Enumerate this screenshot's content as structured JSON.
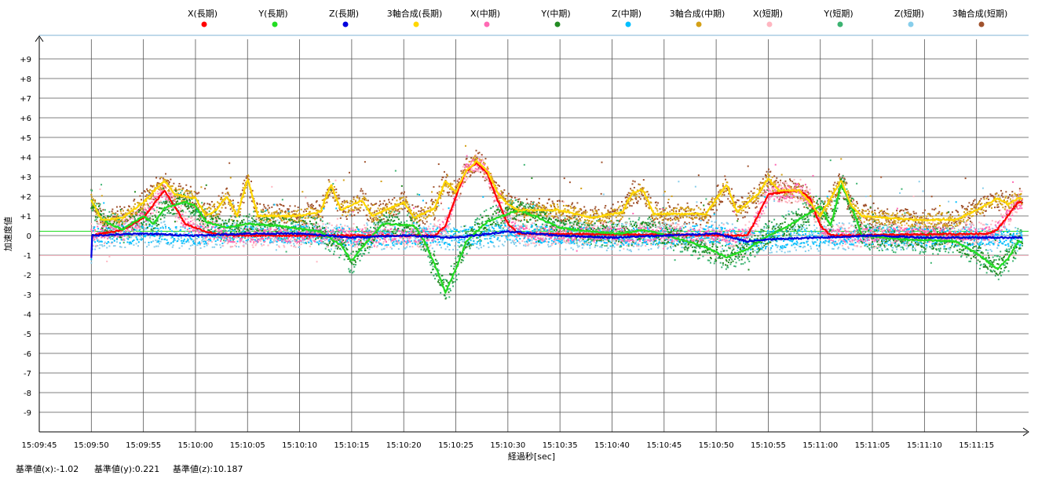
{
  "chart_data": {
    "type": "scatter",
    "xlabel": "経過秒[sec]",
    "ylabel": "加速度値",
    "xlim": [
      "15:09:45",
      "15:11:20"
    ],
    "ylim": [
      -10,
      10
    ],
    "grid": true,
    "legend_position": "top",
    "x_tick_labels": [
      "15:09:45",
      "15:09:50",
      "15:09:55",
      "15:10:00",
      "15:10:05",
      "15:10:10",
      "15:10:15",
      "15:10:20",
      "15:10:25",
      "15:10:30",
      "15:10:35",
      "15:10:40",
      "15:10:45",
      "15:10:50",
      "15:10:55",
      "15:11:00",
      "15:11:05",
      "15:11:10",
      "15:11:15"
    ],
    "y_tick_labels": [
      "+9",
      "+8",
      "+7",
      "+6",
      "+5",
      "+4",
      "+3",
      "+2",
      "+1",
      "0",
      "-1",
      "-2",
      "-3",
      "-4",
      "-5",
      "-6",
      "-7",
      "-8",
      "-9"
    ],
    "reference_lines": [
      {
        "axis": "x",
        "value": -1.02,
        "color": "#f4b6c2"
      },
      {
        "axis": "y",
        "value": 0.221,
        "color": "#22dd22"
      }
    ],
    "series": [
      {
        "name": "X(長期)",
        "color": "#ff0000",
        "kind": "line",
        "points": [
          [
            "15:09:50",
            0
          ],
          [
            "15:09:53",
            0.3
          ],
          [
            "15:09:55",
            0.9
          ],
          [
            "15:09:57",
            2.3
          ],
          [
            "15:09:58",
            1.5
          ],
          [
            "15:09:59",
            0.6
          ],
          [
            "15:10:01",
            0.2
          ],
          [
            "15:10:03",
            0
          ],
          [
            "15:10:23",
            0
          ],
          [
            "15:10:24",
            0.5
          ],
          [
            "15:10:25",
            2.0
          ],
          [
            "15:10:26",
            3.3
          ],
          [
            "15:10:27",
            3.7
          ],
          [
            "15:10:28",
            3.2
          ],
          [
            "15:10:29",
            1.8
          ],
          [
            "15:10:30",
            0.6
          ],
          [
            "15:10:31",
            0.1
          ],
          [
            "15:10:53",
            0
          ],
          [
            "15:10:54",
            1.0
          ],
          [
            "15:10:55",
            2.1
          ],
          [
            "15:10:58",
            2.3
          ],
          [
            "15:10:59",
            1.9
          ],
          [
            "15:11:00",
            0.5
          ],
          [
            "15:11:01",
            0
          ],
          [
            "15:11:16",
            0.1
          ],
          [
            "15:11:17",
            0.3
          ],
          [
            "15:11:19",
            1.7
          ]
        ]
      },
      {
        "name": "Y(長期)",
        "color": "#22dd22",
        "kind": "line",
        "points": [
          [
            "15:09:50",
            1.8
          ],
          [
            "15:09:51",
            0.8
          ],
          [
            "15:09:53",
            0.3
          ],
          [
            "15:09:55",
            1.0
          ],
          [
            "15:09:56",
            0.6
          ],
          [
            "15:09:57",
            1.4
          ],
          [
            "15:09:59",
            1.7
          ],
          [
            "15:10:00",
            1.5
          ],
          [
            "15:10:01",
            0.7
          ],
          [
            "15:10:03",
            0.4
          ],
          [
            "15:10:05",
            0.6
          ],
          [
            "15:10:08",
            0.5
          ],
          [
            "15:10:12",
            0.2
          ],
          [
            "15:10:14",
            -0.5
          ],
          [
            "15:10:15",
            -1.3
          ],
          [
            "15:10:16",
            -0.6
          ],
          [
            "15:10:18",
            0.6
          ],
          [
            "15:10:21",
            0.5
          ],
          [
            "15:10:22",
            -0.3
          ],
          [
            "15:10:23",
            -1.5
          ],
          [
            "15:10:24",
            -2.9
          ],
          [
            "15:10:25",
            -1.7
          ],
          [
            "15:10:26",
            -0.3
          ],
          [
            "15:10:28",
            0.7
          ],
          [
            "15:10:31",
            1.3
          ],
          [
            "15:10:33",
            0.9
          ],
          [
            "15:10:35",
            0.4
          ],
          [
            "15:10:38",
            0.2
          ],
          [
            "15:10:41",
            0.1
          ],
          [
            "15:10:43",
            0.3
          ],
          [
            "15:10:46",
            -0.1
          ],
          [
            "15:10:49",
            -0.6
          ],
          [
            "15:10:51",
            -1.1
          ],
          [
            "15:10:53",
            -0.7
          ],
          [
            "15:10:55",
            0
          ],
          [
            "15:10:57",
            0.5
          ],
          [
            "15:11:00",
            1.5
          ],
          [
            "15:11:01",
            0.5
          ],
          [
            "15:11:02",
            2.6
          ],
          [
            "15:11:03",
            1.5
          ],
          [
            "15:11:04",
            0
          ],
          [
            "15:11:08",
            -0.2
          ],
          [
            "15:11:13",
            -0.3
          ],
          [
            "15:11:15",
            -0.9
          ],
          [
            "15:11:17",
            -1.7
          ],
          [
            "15:11:18",
            -1.2
          ],
          [
            "15:11:19",
            -0.3
          ]
        ]
      },
      {
        "name": "Z(長期)",
        "color": "#0000dd",
        "kind": "line",
        "points": [
          [
            "15:09:50",
            -1.1
          ],
          [
            "15:09:50",
            0
          ],
          [
            "15:09:55",
            0.1
          ],
          [
            "15:10:00",
            0
          ],
          [
            "15:10:05",
            0.1
          ],
          [
            "15:10:10",
            0.1
          ],
          [
            "15:10:15",
            -0.1
          ],
          [
            "15:10:20",
            0
          ],
          [
            "15:10:25",
            -0.1
          ],
          [
            "15:10:30",
            0.2
          ],
          [
            "15:10:35",
            0
          ],
          [
            "15:10:40",
            -0.1
          ],
          [
            "15:10:45",
            0
          ],
          [
            "15:10:50",
            0.1
          ],
          [
            "15:10:53",
            -0.3
          ],
          [
            "15:10:55",
            -0.2
          ],
          [
            "15:11:00",
            -0.1
          ],
          [
            "15:11:05",
            0
          ],
          [
            "15:11:10",
            -0.1
          ],
          [
            "15:11:15",
            -0.1
          ],
          [
            "15:11:19",
            -0.1
          ]
        ]
      },
      {
        "name": "3軸合成(長期)",
        "color": "#ffd700",
        "kind": "line",
        "points": [
          [
            "15:09:50",
            1.8
          ],
          [
            "15:09:51",
            0.8
          ],
          [
            "15:09:53",
            0.9
          ],
          [
            "15:09:55",
            1.7
          ],
          [
            "15:09:57",
            2.8
          ],
          [
            "15:09:58",
            2.1
          ],
          [
            "15:10:00",
            1.9
          ],
          [
            "15:10:01",
            1.0
          ],
          [
            "15:10:02",
            1.3
          ],
          [
            "15:10:03",
            2.0
          ],
          [
            "15:10:04",
            1.0
          ],
          [
            "15:10:05",
            2.9
          ],
          [
            "15:10:06",
            1.0
          ],
          [
            "15:10:10",
            1.0
          ],
          [
            "15:10:12",
            1.2
          ],
          [
            "15:10:13",
            2.6
          ],
          [
            "15:10:14",
            1.3
          ],
          [
            "15:10:16",
            1.8
          ],
          [
            "15:10:17",
            1.0
          ],
          [
            "15:10:20",
            1.7
          ],
          [
            "15:10:21",
            0.9
          ],
          [
            "15:10:23",
            1.4
          ],
          [
            "15:10:24",
            2.8
          ],
          [
            "15:10:25",
            2.2
          ],
          [
            "15:10:26",
            3.3
          ],
          [
            "15:10:27",
            3.8
          ],
          [
            "15:10:28",
            3.3
          ],
          [
            "15:10:29",
            2.2
          ],
          [
            "15:10:30",
            1.6
          ],
          [
            "15:10:31",
            1.3
          ],
          [
            "15:10:35",
            1.3
          ],
          [
            "15:10:38",
            0.9
          ],
          [
            "15:10:41",
            1.2
          ],
          [
            "15:10:42",
            2.2
          ],
          [
            "15:10:43",
            2.3
          ],
          [
            "15:10:44",
            1.1
          ],
          [
            "15:10:49",
            1.1
          ],
          [
            "15:10:51",
            2.6
          ],
          [
            "15:10:52",
            1.2
          ],
          [
            "15:10:54",
            2.1
          ],
          [
            "15:10:55",
            2.9
          ],
          [
            "15:10:56",
            2.3
          ],
          [
            "15:10:58",
            2.3
          ],
          [
            "15:10:59",
            1.7
          ],
          [
            "15:11:00",
            1.0
          ],
          [
            "15:11:02",
            2.8
          ],
          [
            "15:11:03",
            1.5
          ],
          [
            "15:11:04",
            1.0
          ],
          [
            "15:11:09",
            0.8
          ],
          [
            "15:11:13",
            0.8
          ],
          [
            "15:11:15",
            1.3
          ],
          [
            "15:11:17",
            1.9
          ],
          [
            "15:11:18",
            1.6
          ],
          [
            "15:11:19",
            1.9
          ]
        ]
      },
      {
        "name": "X(中期)",
        "color": "#ff69b4",
        "kind": "scatter",
        "noise": 0.35,
        "base": "X(長期)"
      },
      {
        "name": "Y(中期)",
        "color": "#228b22",
        "kind": "scatter",
        "noise": 0.45,
        "base": "Y(長期)"
      },
      {
        "name": "Z(中期)",
        "color": "#00bfff",
        "kind": "scatter",
        "noise": 0.45,
        "base": "Z(長期)"
      },
      {
        "name": "3軸合成(中期)",
        "color": "#d4a017",
        "kind": "scatter",
        "noise": 0.35,
        "base": "3軸合成(長期)"
      },
      {
        "name": "X(短期)",
        "color": "#ffb6c1",
        "kind": "scatter",
        "noise": 0.6,
        "base": "X(長期)"
      },
      {
        "name": "Y(短期)",
        "color": "#3cb371",
        "kind": "scatter",
        "noise": 0.7,
        "base": "Y(長期)"
      },
      {
        "name": "Z(短期)",
        "color": "#87ceeb",
        "kind": "scatter",
        "noise": 0.7,
        "base": "Z(長期)"
      },
      {
        "name": "3軸合成(短期)",
        "color": "#a0522d",
        "kind": "scatter",
        "noise": 0.6,
        "base": "3軸合成(長期)"
      }
    ]
  },
  "footer": {
    "base_x": "基準値(x):-1.02",
    "base_y": "基準値(y):0.221",
    "base_z": "基準値(z):10.187"
  }
}
